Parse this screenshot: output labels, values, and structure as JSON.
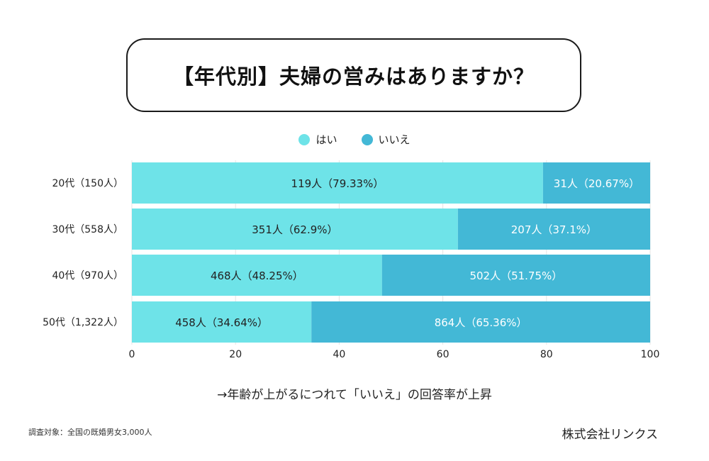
{
  "title": "【年代別】夫婦の営みはありますか？",
  "note": "→年齢が上がるにつれて「いいえ」の回答率が上昇",
  "footnote": "調査対象：全国の既婚男女3,000人",
  "company": "株式会社リンクス",
  "colors": {
    "yes": "#6ee3e8",
    "no": "#43b8d6"
  },
  "chart_data": {
    "type": "bar",
    "orientation": "horizontal",
    "stacked": true,
    "categories": [
      "20代（150人）",
      "30代（558人）",
      "40代（970人）",
      "50代（1,322人）"
    ],
    "series": [
      {
        "name": "はい",
        "values": [
          79.33,
          62.9,
          48.25,
          34.64
        ],
        "labels": [
          "119人（79.33%）",
          "351人（62.9%）",
          "468人（48.25%）",
          "458人（34.64%）"
        ]
      },
      {
        "name": "いいえ",
        "values": [
          20.67,
          37.1,
          51.75,
          65.36
        ],
        "labels": [
          "31人（20.67%）",
          "207人（37.1%）",
          "502人（51.75%）",
          "864人（65.36%）"
        ]
      }
    ],
    "xlim": [
      0,
      100
    ],
    "xticks": [
      0,
      20,
      40,
      60,
      80,
      100
    ],
    "legend_position": "top-center",
    "grid": true
  }
}
